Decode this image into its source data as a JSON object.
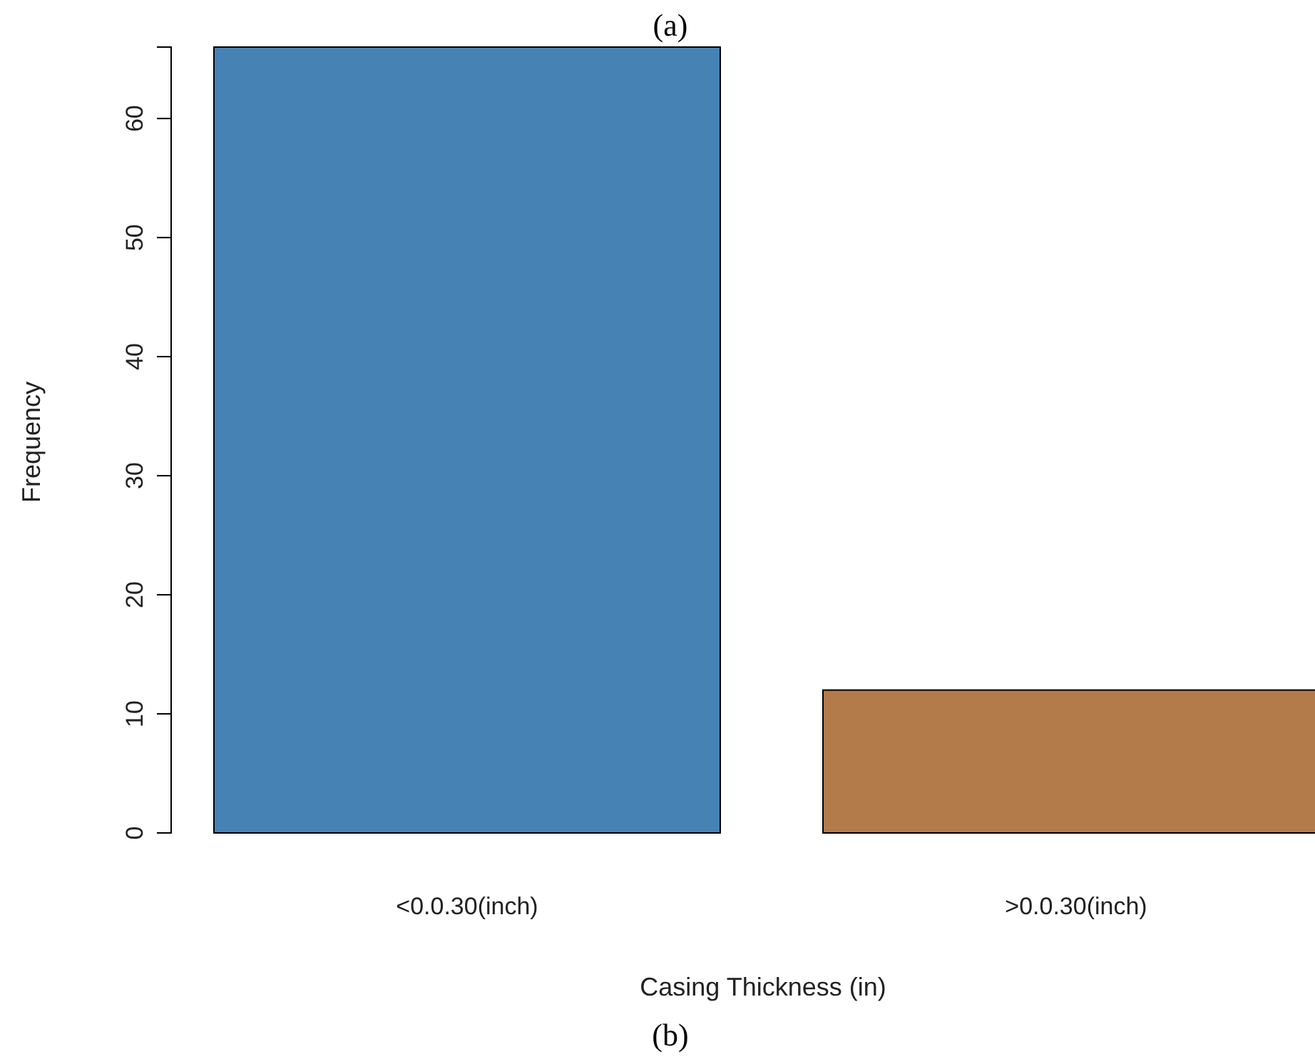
{
  "chart_data": {
    "type": "bar",
    "categories": [
      "<0.0.30(inch)",
      ">0.0.30(inch)"
    ],
    "values": [
      66,
      12
    ],
    "colors": [
      "#4682b4",
      "#b37a4a"
    ],
    "xlabel": "Casing Thickness (in)",
    "ylabel": "Frequency",
    "ylim": [
      0,
      66
    ],
    "yticks": [
      0,
      10,
      20,
      30,
      40,
      50,
      60
    ],
    "annotations": [
      "(a)",
      "(b)"
    ]
  }
}
